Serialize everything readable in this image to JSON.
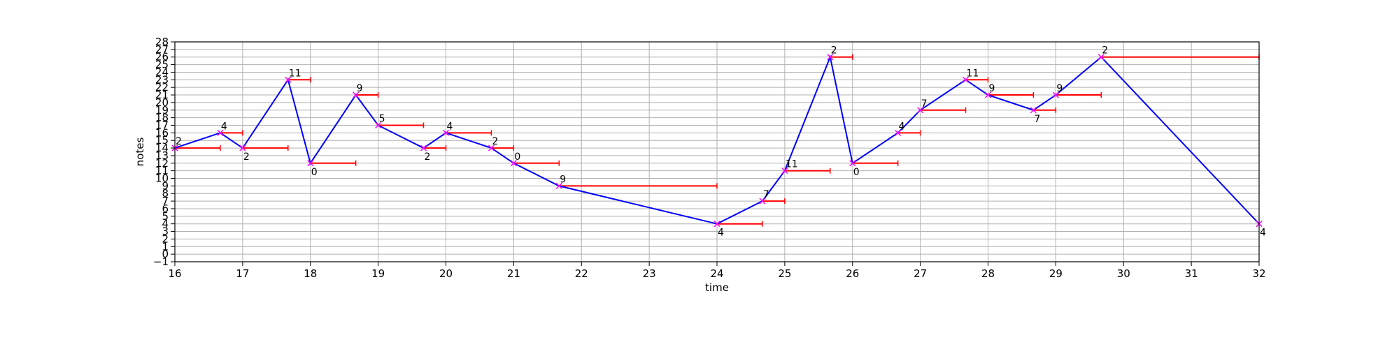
{
  "chart_data": {
    "type": "line",
    "xlabel": "time",
    "ylabel": "notes",
    "xlim": [
      16,
      32
    ],
    "ylim": [
      -1,
      28
    ],
    "x_ticks": [
      16,
      17,
      18,
      19,
      20,
      21,
      22,
      23,
      24,
      25,
      26,
      27,
      28,
      29,
      30,
      31,
      32
    ],
    "y_ticks": [
      -1,
      0,
      1,
      2,
      3,
      4,
      5,
      6,
      7,
      8,
      9,
      10,
      11,
      12,
      13,
      14,
      15,
      16,
      17,
      18,
      19,
      20,
      21,
      22,
      23,
      24,
      25,
      26,
      27,
      28
    ],
    "x_tick_labels": [
      "16",
      "17",
      "18",
      "19",
      "20",
      "21",
      "22",
      "23",
      "24",
      "25",
      "26",
      "27",
      "28",
      "29",
      "30",
      "31",
      "32"
    ],
    "y_tick_labels": [
      "−1",
      "0",
      "1",
      "2",
      "3",
      "4",
      "5",
      "6",
      "7",
      "8",
      "9",
      "10",
      "11",
      "12",
      "13",
      "14",
      "15",
      "16",
      "17",
      "18",
      "19",
      "20",
      "21",
      "22",
      "23",
      "24",
      "25",
      "26",
      "27",
      "28"
    ],
    "grid": true,
    "colors": {
      "line": "#0000ff",
      "marker": "#ff00ff",
      "duration": "#ff0000",
      "grid": "#b0b0b0"
    },
    "series": [
      {
        "points": [
          {
            "x": 16.0,
            "y": 14,
            "end": 16.67,
            "label": "2",
            "label_pos": "above"
          },
          {
            "x": 16.67,
            "y": 16,
            "end": 17.0,
            "label": "4",
            "label_pos": "above"
          },
          {
            "x": 17.0,
            "y": 14,
            "end": 17.67,
            "label": "2",
            "label_pos": "below"
          },
          {
            "x": 17.67,
            "y": 23,
            "end": 18.0,
            "label": "11",
            "label_pos": "above"
          },
          {
            "x": 18.0,
            "y": 12,
            "end": 18.67,
            "label": "0",
            "label_pos": "below"
          },
          {
            "x": 18.67,
            "y": 21,
            "end": 19.0,
            "label": "9",
            "label_pos": "above"
          },
          {
            "x": 19.0,
            "y": 17,
            "end": 19.67,
            "label": "5",
            "label_pos": "above"
          },
          {
            "x": 19.67,
            "y": 14,
            "end": 20.0,
            "label": "2",
            "label_pos": "below"
          },
          {
            "x": 20.0,
            "y": 16,
            "end": 20.67,
            "label": "4",
            "label_pos": "above"
          },
          {
            "x": 20.67,
            "y": 14,
            "end": 21.0,
            "label": "2",
            "label_pos": "above"
          },
          {
            "x": 21.0,
            "y": 12,
            "end": 21.67,
            "label": "0",
            "label_pos": "above"
          },
          {
            "x": 21.67,
            "y": 9,
            "end": 24.0,
            "label": "9",
            "label_pos": "above"
          },
          {
            "x": 24.0,
            "y": 4,
            "end": 24.67,
            "label": "4",
            "label_pos": "below"
          },
          {
            "x": 24.67,
            "y": 7,
            "end": 25.0,
            "label": "7",
            "label_pos": "above"
          },
          {
            "x": 25.0,
            "y": 11,
            "end": 25.67,
            "label": "11",
            "label_pos": "above"
          },
          {
            "x": 25.67,
            "y": 26,
            "end": 26.0,
            "label": "2",
            "label_pos": "above"
          },
          {
            "x": 26.0,
            "y": 12,
            "end": 26.67,
            "label": "0",
            "label_pos": "below"
          },
          {
            "x": 26.67,
            "y": 16,
            "end": 27.0,
            "label": "4",
            "label_pos": "above"
          },
          {
            "x": 27.0,
            "y": 19,
            "end": 27.67,
            "label": "7",
            "label_pos": "above"
          },
          {
            "x": 27.67,
            "y": 23,
            "end": 28.0,
            "label": "11",
            "label_pos": "above"
          },
          {
            "x": 28.0,
            "y": 21,
            "end": 28.67,
            "label": "9",
            "label_pos": "above"
          },
          {
            "x": 28.67,
            "y": 19,
            "end": 29.0,
            "label": "7",
            "label_pos": "below"
          },
          {
            "x": 29.0,
            "y": 21,
            "end": 29.67,
            "label": "9",
            "label_pos": "above"
          },
          {
            "x": 29.67,
            "y": 26,
            "end": 32.0,
            "label": "2",
            "label_pos": "above"
          },
          {
            "x": 32.0,
            "y": 4,
            "end": null,
            "label": "4",
            "label_pos": "below"
          }
        ]
      }
    ]
  }
}
